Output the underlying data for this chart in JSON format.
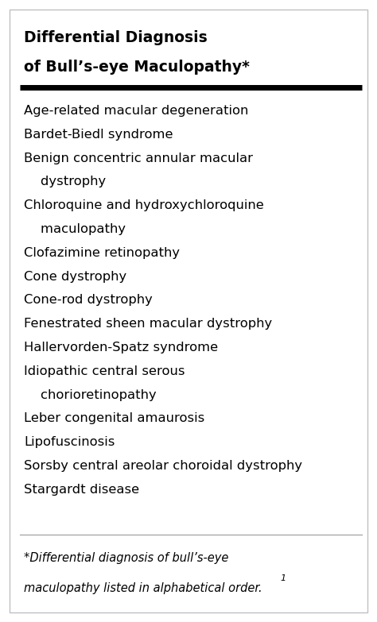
{
  "title_line1": "Differential Diagnosis",
  "title_line2": "of Bull’s-eye Maculopathy*",
  "items": [
    {
      "text": "Age-related macular degeneration",
      "indent": false
    },
    {
      "text": "Bardet-Biedl syndrome",
      "indent": false
    },
    {
      "text": "Benign concentric annular macular",
      "indent": false
    },
    {
      "text": "    dystrophy",
      "indent": true
    },
    {
      "text": "Chloroquine and hydroxychloroquine",
      "indent": false
    },
    {
      "text": "    maculopathy",
      "indent": true
    },
    {
      "text": "Clofazimine retinopathy",
      "indent": false
    },
    {
      "text": "Cone dystrophy",
      "indent": false
    },
    {
      "text": "Cone-rod dystrophy",
      "indent": false
    },
    {
      "text": "Fenestrated sheen macular dystrophy",
      "indent": false
    },
    {
      "text": "Hallervorden-Spatz syndrome",
      "indent": false
    },
    {
      "text": "Idiopathic central serous",
      "indent": false
    },
    {
      "text": "    chorioretinopathy",
      "indent": true
    },
    {
      "text": "Leber congenital amaurosis",
      "indent": false
    },
    {
      "text": "Lipofuscinosis",
      "indent": false
    },
    {
      "text": "Sorsby central areolar choroidal dystrophy",
      "indent": false
    },
    {
      "text": "Stargardt disease",
      "indent": false
    }
  ],
  "footnote_line1": "*Differential diagnosis of bull’s-eye",
  "footnote_line2": "maculopathy listed in alphabetical order.",
  "footnote_superscript": "1",
  "background_color": "#ffffff",
  "text_color": "#000000",
  "border_color": "#c0c0c0",
  "title_fontsize": 13.5,
  "body_fontsize": 11.8,
  "footnote_fontsize": 10.5,
  "thick_line_color": "#000000",
  "thin_line_color": "#999999",
  "fig_width": 4.74,
  "fig_height": 7.83,
  "dpi": 100
}
